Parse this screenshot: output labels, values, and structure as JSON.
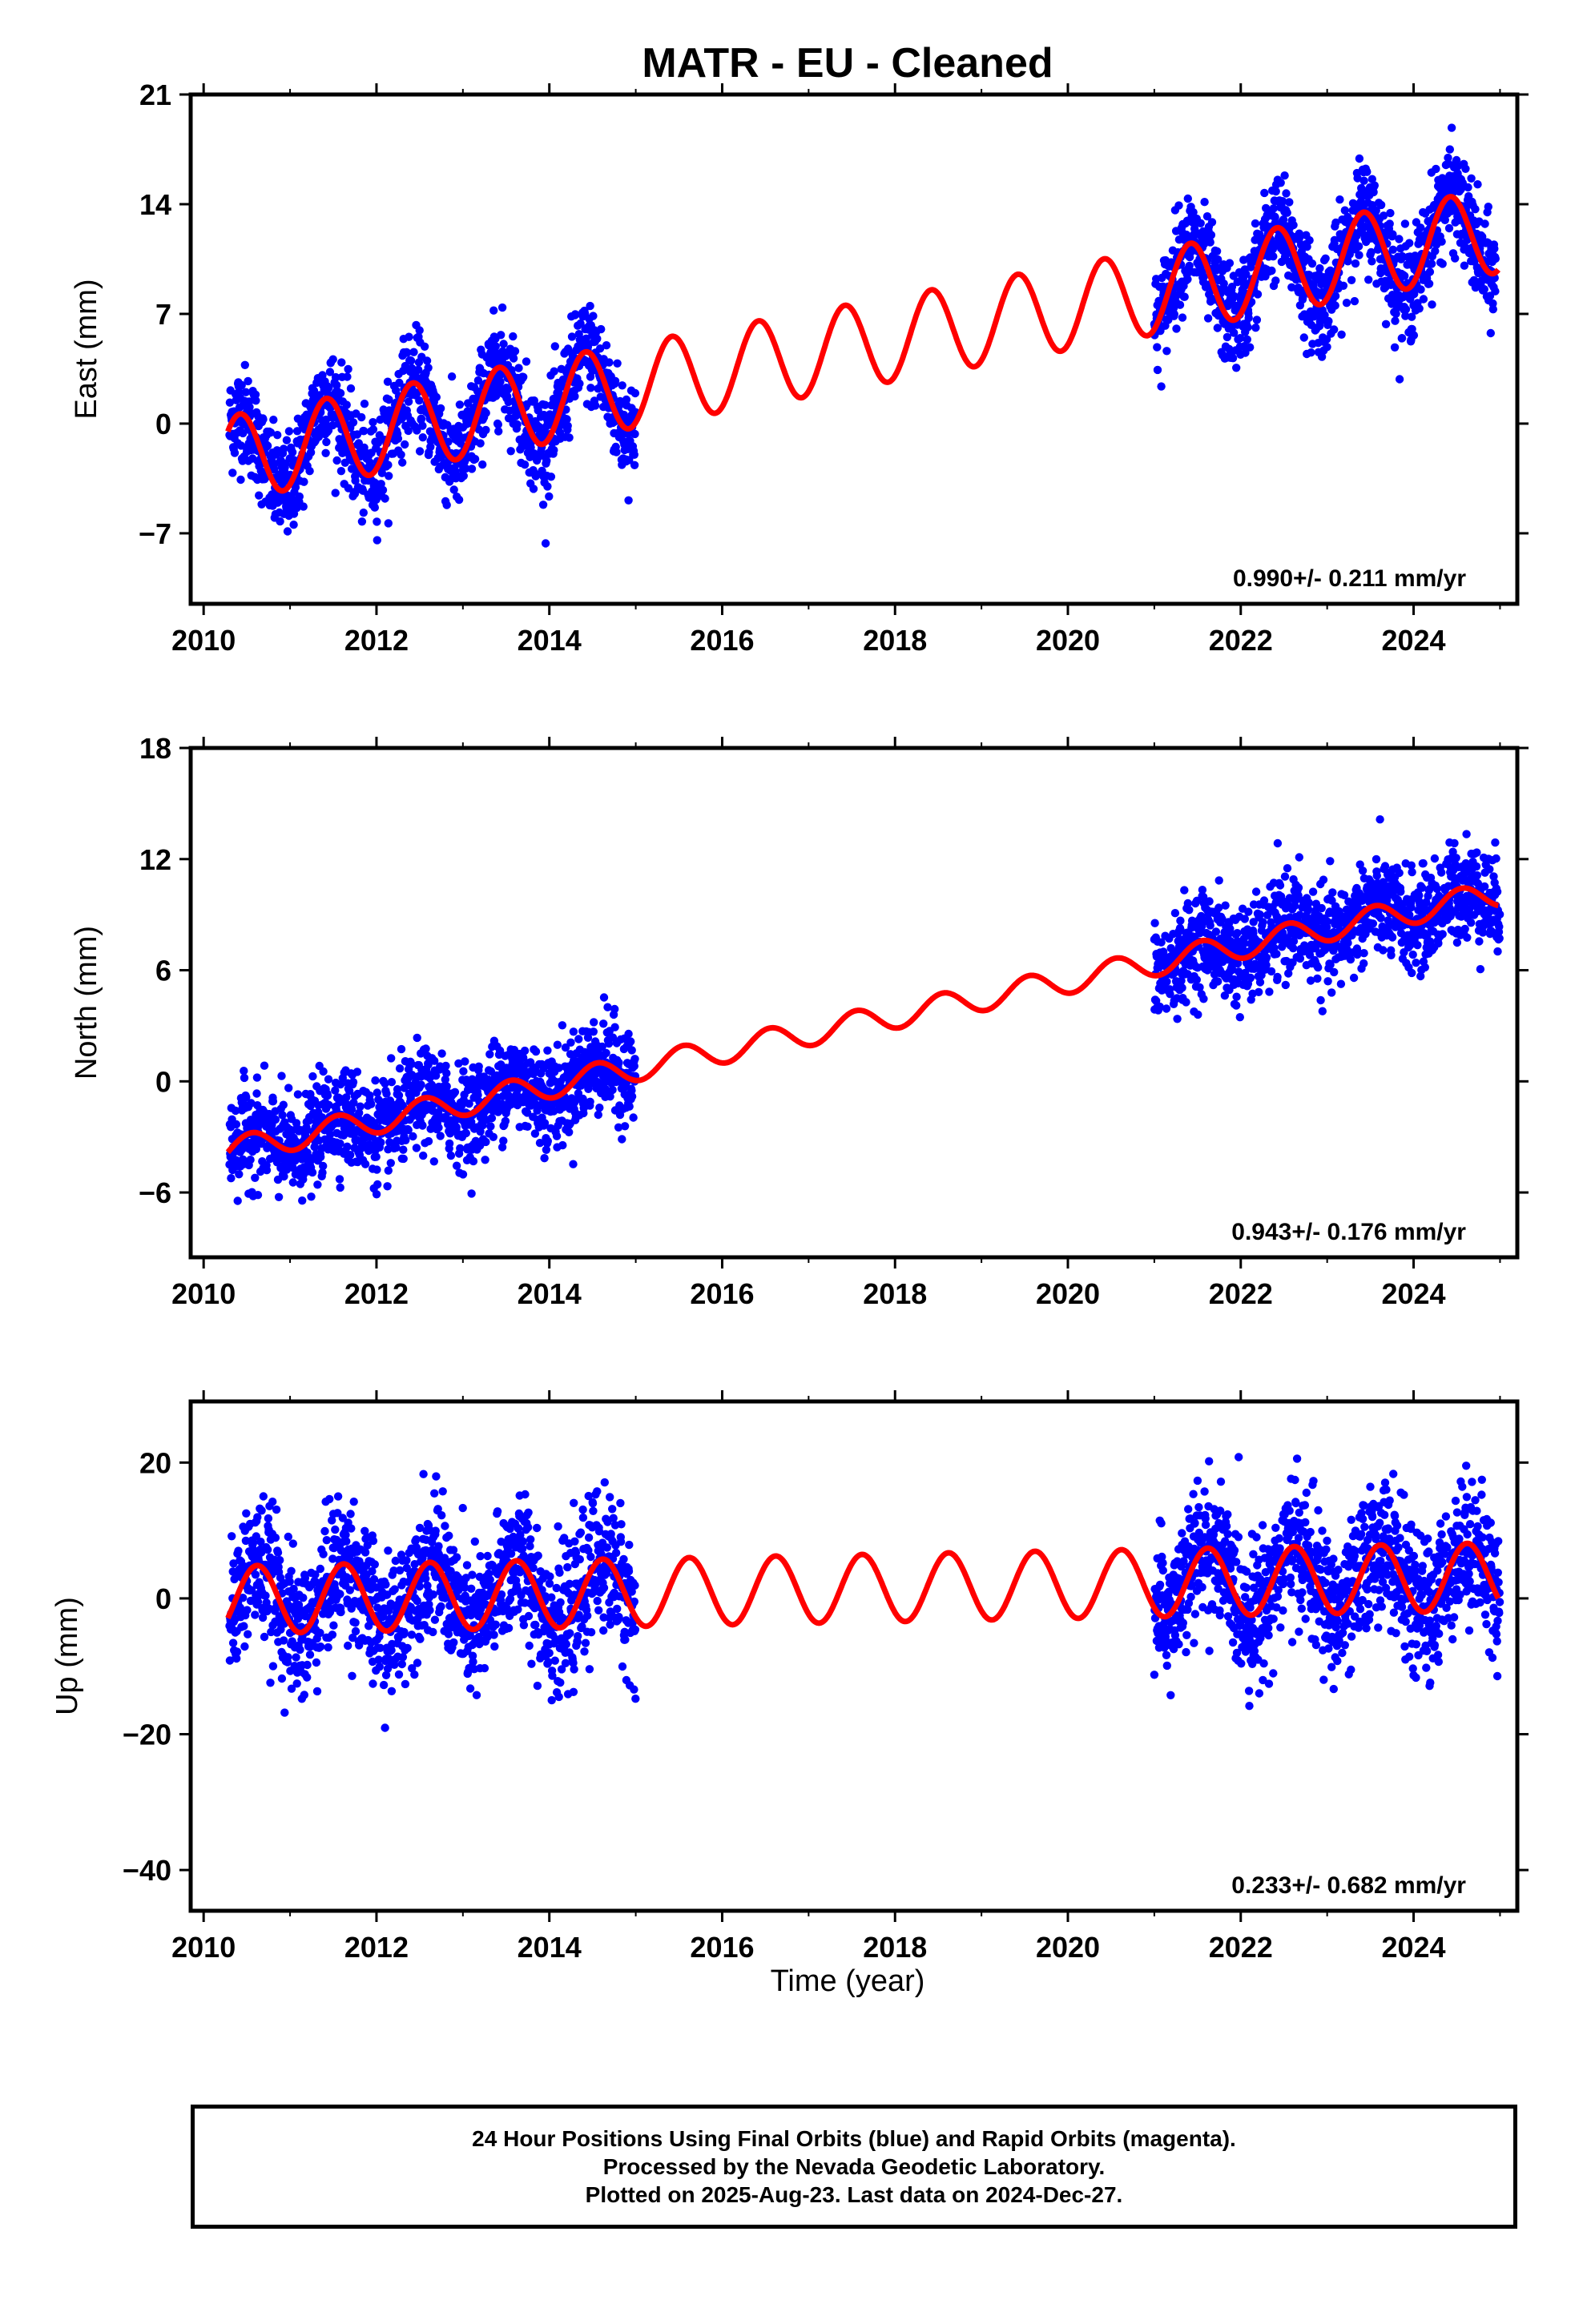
{
  "title": "MATR  - EU - Cleaned",
  "footer": {
    "line1": "24 Hour Positions Using Final Orbits (blue) and Rapid Orbits (magenta).",
    "line2": "Processed by the Nevada Geodetic Laboratory.",
    "line3": "Plotted on 2025-Aug-23. Last data on 2024-Dec-27."
  },
  "colors": {
    "data": "#0000ff",
    "model": "#ff0000",
    "axis": "#000000"
  },
  "chart_data": [
    {
      "type": "scatter",
      "ylabel": "East (mm)",
      "xlim": [
        2009.85,
        2025.2
      ],
      "ylim": [
        -11.5,
        21
      ],
      "yticks": [
        -7,
        0,
        7,
        14,
        21
      ],
      "xticks": [
        2010,
        2012,
        2014,
        2016,
        2018,
        2020,
        2022,
        2024
      ],
      "rate_label": "0.990+/- 0.211 mm/yr",
      "model": {
        "rate_mm_per_yr": 0.99,
        "offset_mm": -2.5,
        "annual_amplitude_mm": 2.7,
        "peak_phase_yr": 0.42
      },
      "series": [
        {
          "x": [
            2010.3,
            2010.6,
            2010.9,
            2011.2,
            2011.4,
            2011.7,
            2012.0,
            2012.4,
            2012.8,
            2013.1,
            2013.4,
            2013.8,
            2014.1,
            2014.4,
            2014.8,
            2015.0
          ],
          "y": [
            0.5,
            -2,
            -4.5,
            -2,
            1.5,
            -3,
            -3.5,
            2.5,
            -2.5,
            -1,
            3.5,
            -3,
            -1.5,
            4.5,
            -2.5,
            -3
          ]
        },
        {
          "x": [
            2021.0,
            2021.3,
            2021.5,
            2021.8,
            2022.1,
            2022.4,
            2022.7,
            2023.0,
            2023.4,
            2023.7,
            2024.0,
            2024.4,
            2024.7,
            2024.95
          ],
          "y": [
            6,
            10,
            12,
            7,
            8,
            15,
            9,
            10,
            17,
            11,
            10,
            17,
            12,
            11
          ]
        }
      ]
    },
    {
      "type": "scatter",
      "ylabel": "North (mm)",
      "xlim": [
        2009.85,
        2025.2
      ],
      "ylim": [
        -9.5,
        18
      ],
      "yticks": [
        -6,
        0,
        6,
        12,
        18
      ],
      "xticks": [
        2010,
        2012,
        2014,
        2016,
        2018,
        2020,
        2022,
        2024
      ],
      "rate_label": "0.943+/- 0.176 mm/yr",
      "model": {
        "rate_mm_per_yr": 0.943,
        "offset_mm": -4.0,
        "annual_amplitude_mm": 0.7,
        "peak_phase_yr": 0.55
      },
      "series": [
        {
          "x": [
            2010.3,
            2010.6,
            2011.0,
            2011.4,
            2011.8,
            2012.2,
            2012.6,
            2013.0,
            2013.4,
            2013.8,
            2014.2,
            2014.6,
            2015.0
          ],
          "y": [
            -5,
            -3.5,
            -3.5,
            -3,
            -2.5,
            -2,
            -1.5,
            -1,
            -1,
            -0.5,
            0,
            1,
            1.5
          ]
        },
        {
          "x": [
            2021.0,
            2021.3,
            2021.6,
            2022.0,
            2022.4,
            2022.8,
            2023.2,
            2023.6,
            2024.0,
            2024.4,
            2024.8,
            2025.0
          ],
          "y": [
            4,
            6,
            7,
            7,
            8,
            8,
            8.5,
            9.5,
            10,
            10,
            10.5,
            11
          ]
        }
      ]
    },
    {
      "type": "scatter",
      "ylabel": "Up (mm)",
      "xlabel": "Time (year)",
      "xlim": [
        2009.85,
        2025.2
      ],
      "ylim": [
        -46,
        29
      ],
      "yticks": [
        -40,
        -20,
        0,
        20
      ],
      "xticks": [
        2010,
        2012,
        2014,
        2016,
        2018,
        2020,
        2022,
        2024
      ],
      "rate_label": "0.233+/- 0.682 mm/yr",
      "model": {
        "rate_mm_per_yr": 0.233,
        "offset_mm": -0.3,
        "annual_amplitude_mm": 5.0,
        "peak_phase_yr": 0.62
      },
      "series": [
        {
          "x": [
            2010.3,
            2010.6,
            2011.0,
            2011.3,
            2011.6,
            2012.0,
            2012.3,
            2012.6,
            2013.0,
            2013.3,
            2013.6,
            2014.0,
            2014.3,
            2014.6,
            2015.0
          ],
          "y": [
            -5,
            4,
            -6,
            0,
            5,
            -6,
            0,
            5,
            -6,
            0,
            5,
            -6,
            0,
            5,
            -5
          ]
        },
        {
          "x": [
            2021.0,
            2021.3,
            2021.6,
            2022.0,
            2022.3,
            2022.6,
            2023.0,
            2023.3,
            2023.6,
            2024.0,
            2024.3,
            2024.6,
            2025.0
          ],
          "y": [
            -5,
            0,
            6,
            -5,
            0,
            6,
            -4,
            1,
            7,
            -4,
            1,
            7,
            -2
          ]
        }
      ]
    }
  ]
}
